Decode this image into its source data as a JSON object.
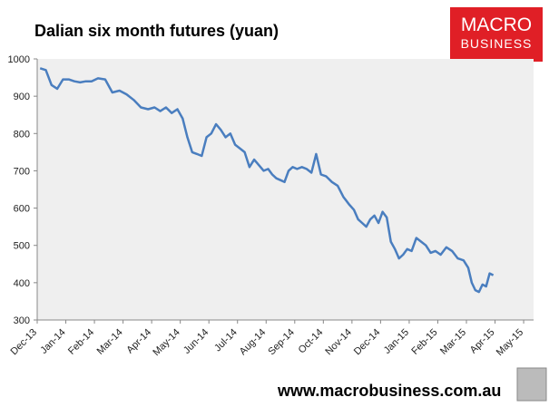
{
  "chart_data": {
    "type": "line",
    "title": "Dalian six month futures (yuan)",
    "xticks": [
      "Dec-13",
      "Jan-14",
      "Feb-14",
      "Mar-14",
      "Apr-14",
      "May-14",
      "Jun-14",
      "Jul-14",
      "Aug-14",
      "Sep-14",
      "Oct-14",
      "Nov-14",
      "Dec-14",
      "Jan-15",
      "Feb-15",
      "Mar-15",
      "Apr-15",
      "May-15"
    ],
    "ylim": [
      300,
      1000
    ],
    "yticks": [
      300,
      400,
      500,
      600,
      700,
      800,
      900,
      1000
    ],
    "grid": false,
    "series": [
      {
        "color": "#4a7ebf",
        "x": [
          "Dec-13",
          "Dec-13",
          "Dec-13",
          "Dec-13",
          "Dec-13",
          "Jan-14",
          "Jan-14",
          "Jan-14",
          "Jan-14",
          "Jan-14",
          "Feb-14",
          "Feb-14",
          "Feb-14",
          "Feb-14",
          "Mar-14",
          "Mar-14",
          "Mar-14",
          "Mar-14",
          "Apr-14",
          "Apr-14",
          "Apr-14",
          "Apr-14",
          "Apr-14",
          "May-14",
          "May-14",
          "May-14",
          "May-14",
          "May-14",
          "May-14",
          "Jun-14",
          "Jun-14",
          "Jun-14",
          "Jun-14",
          "Jun-14",
          "Jun-14",
          "Jul-14",
          "Jul-14",
          "Jul-14",
          "Jul-14",
          "Jul-14",
          "Jul-14",
          "Aug-14",
          "Aug-14",
          "Aug-14",
          "Aug-14",
          "Aug-14",
          "Aug-14",
          "Aug-14",
          "Sep-14",
          "Sep-14",
          "Sep-14",
          "Sep-14",
          "Sep-14",
          "Sep-14",
          "Oct-14",
          "Oct-14",
          "Oct-14",
          "Oct-14",
          "Oct-14",
          "Nov-14",
          "Nov-14",
          "Nov-14",
          "Nov-14",
          "Nov-14",
          "Nov-14",
          "Nov-14",
          "Dec-14",
          "Dec-14",
          "Dec-14",
          "Dec-14",
          "Dec-14",
          "Dec-14",
          "Dec-14",
          "Jan-15",
          "Jan-15",
          "Jan-15",
          "Jan-15",
          "Jan-15",
          "Jan-15",
          "Feb-15",
          "Feb-15",
          "Feb-15",
          "Feb-15",
          "Feb-15",
          "Mar-15",
          "Mar-15",
          "Mar-15",
          "Mar-15",
          "Mar-15",
          "Mar-15",
          "Mar-15",
          "Mar-15"
        ],
        "values": [
          975,
          970,
          930,
          920,
          945,
          945,
          940,
          937,
          940,
          940,
          948,
          945,
          910,
          915,
          905,
          890,
          870,
          865,
          870,
          860,
          870,
          855,
          865,
          840,
          790,
          750,
          745,
          740,
          790,
          800,
          825,
          810,
          790,
          800,
          770,
          760,
          750,
          710,
          730,
          715,
          700,
          705,
          690,
          680,
          675,
          670,
          700,
          710,
          705,
          710,
          705,
          695,
          745,
          690,
          685,
          670,
          660,
          630,
          610,
          595,
          570,
          560,
          550,
          570,
          580,
          560,
          590,
          575,
          510,
          490,
          465,
          475,
          490,
          485,
          520,
          510,
          500,
          480,
          485,
          475,
          495,
          485,
          465,
          460,
          440,
          400,
          380,
          375,
          395,
          390,
          425,
          420
        ]
      }
    ]
  },
  "branding": {
    "logo_top": "MACRO",
    "logo_bottom": "BUSINESS",
    "url": "www.macrobusiness.com.au"
  }
}
